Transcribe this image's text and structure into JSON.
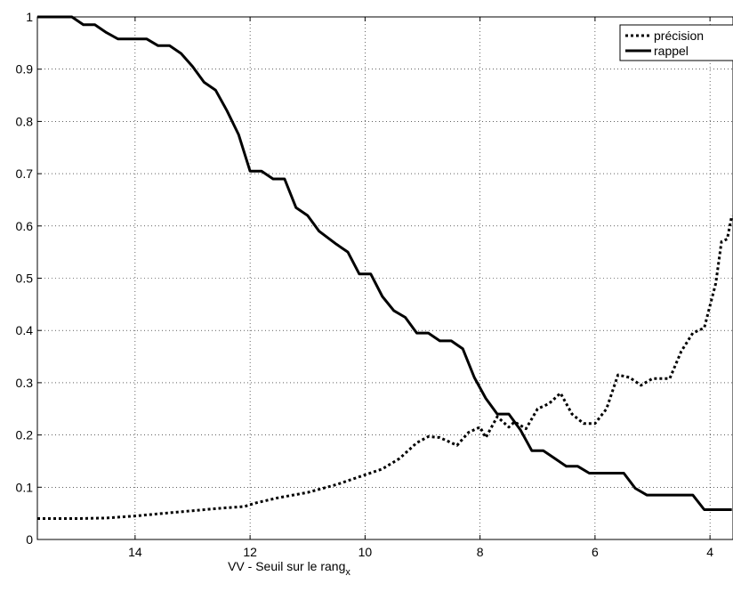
{
  "chart_data": {
    "type": "line",
    "title": "",
    "xlabel": "VV - Seuil sur le rang",
    "xlabel_subscript": "x",
    "ylabel": "",
    "x_reversed": true,
    "xlim": [
      15.7,
      3.6
    ],
    "ylim": [
      0,
      1
    ],
    "x_ticks": [
      14,
      12,
      10,
      8,
      6,
      4
    ],
    "y_ticks": [
      0,
      0.1,
      0.2,
      0.3,
      0.4,
      0.5,
      0.6,
      0.7,
      0.8,
      0.9,
      1
    ],
    "grid": true,
    "legend_position": "top-right",
    "series": [
      {
        "name": "précision",
        "style": "dotted",
        "points": [
          [
            15.7,
            0.04
          ],
          [
            15.0,
            0.04
          ],
          [
            14.5,
            0.041
          ],
          [
            14.0,
            0.045
          ],
          [
            13.5,
            0.05
          ],
          [
            13.0,
            0.055
          ],
          [
            12.5,
            0.06
          ],
          [
            12.1,
            0.063
          ],
          [
            11.9,
            0.07
          ],
          [
            11.5,
            0.08
          ],
          [
            11.0,
            0.09
          ],
          [
            10.5,
            0.105
          ],
          [
            10.1,
            0.12
          ],
          [
            9.7,
            0.135
          ],
          [
            9.4,
            0.155
          ],
          [
            9.1,
            0.185
          ],
          [
            8.9,
            0.197
          ],
          [
            8.7,
            0.195
          ],
          [
            8.4,
            0.18
          ],
          [
            8.2,
            0.205
          ],
          [
            8.0,
            0.215
          ],
          [
            7.9,
            0.195
          ],
          [
            7.7,
            0.235
          ],
          [
            7.5,
            0.215
          ],
          [
            7.4,
            0.225
          ],
          [
            7.2,
            0.212
          ],
          [
            7.0,
            0.25
          ],
          [
            6.8,
            0.26
          ],
          [
            6.6,
            0.28
          ],
          [
            6.4,
            0.24
          ],
          [
            6.2,
            0.222
          ],
          [
            6.0,
            0.222
          ],
          [
            5.8,
            0.25
          ],
          [
            5.6,
            0.315
          ],
          [
            5.4,
            0.31
          ],
          [
            5.2,
            0.295
          ],
          [
            5.0,
            0.308
          ],
          [
            4.7,
            0.308
          ],
          [
            4.5,
            0.36
          ],
          [
            4.3,
            0.395
          ],
          [
            4.1,
            0.405
          ],
          [
            3.9,
            0.49
          ],
          [
            3.8,
            0.57
          ],
          [
            3.7,
            0.575
          ],
          [
            3.62,
            0.62
          ]
        ]
      },
      {
        "name": "rappel",
        "style": "solid",
        "points": [
          [
            15.7,
            1.0
          ],
          [
            15.1,
            1.0
          ],
          [
            14.9,
            0.985
          ],
          [
            14.7,
            0.985
          ],
          [
            14.5,
            0.97
          ],
          [
            14.3,
            0.958
          ],
          [
            13.8,
            0.958
          ],
          [
            13.6,
            0.945
          ],
          [
            13.4,
            0.945
          ],
          [
            13.2,
            0.93
          ],
          [
            13.0,
            0.905
          ],
          [
            12.8,
            0.875
          ],
          [
            12.6,
            0.86
          ],
          [
            12.4,
            0.82
          ],
          [
            12.2,
            0.775
          ],
          [
            12.0,
            0.705
          ],
          [
            11.8,
            0.705
          ],
          [
            11.6,
            0.69
          ],
          [
            11.4,
            0.69
          ],
          [
            11.2,
            0.635
          ],
          [
            11.0,
            0.62
          ],
          [
            10.8,
            0.59
          ],
          [
            10.5,
            0.565
          ],
          [
            10.3,
            0.55
          ],
          [
            10.1,
            0.508
          ],
          [
            9.9,
            0.508
          ],
          [
            9.7,
            0.465
          ],
          [
            9.5,
            0.438
          ],
          [
            9.3,
            0.425
          ],
          [
            9.1,
            0.395
          ],
          [
            8.9,
            0.395
          ],
          [
            8.7,
            0.38
          ],
          [
            8.5,
            0.38
          ],
          [
            8.3,
            0.365
          ],
          [
            8.1,
            0.31
          ],
          [
            7.9,
            0.27
          ],
          [
            7.7,
            0.24
          ],
          [
            7.5,
            0.24
          ],
          [
            7.3,
            0.21
          ],
          [
            7.1,
            0.17
          ],
          [
            6.9,
            0.17
          ],
          [
            6.7,
            0.155
          ],
          [
            6.5,
            0.14
          ],
          [
            6.3,
            0.14
          ],
          [
            6.1,
            0.127
          ],
          [
            5.5,
            0.127
          ],
          [
            5.3,
            0.098
          ],
          [
            5.1,
            0.085
          ],
          [
            4.3,
            0.085
          ],
          [
            4.1,
            0.057
          ],
          [
            3.62,
            0.057
          ]
        ]
      }
    ]
  }
}
